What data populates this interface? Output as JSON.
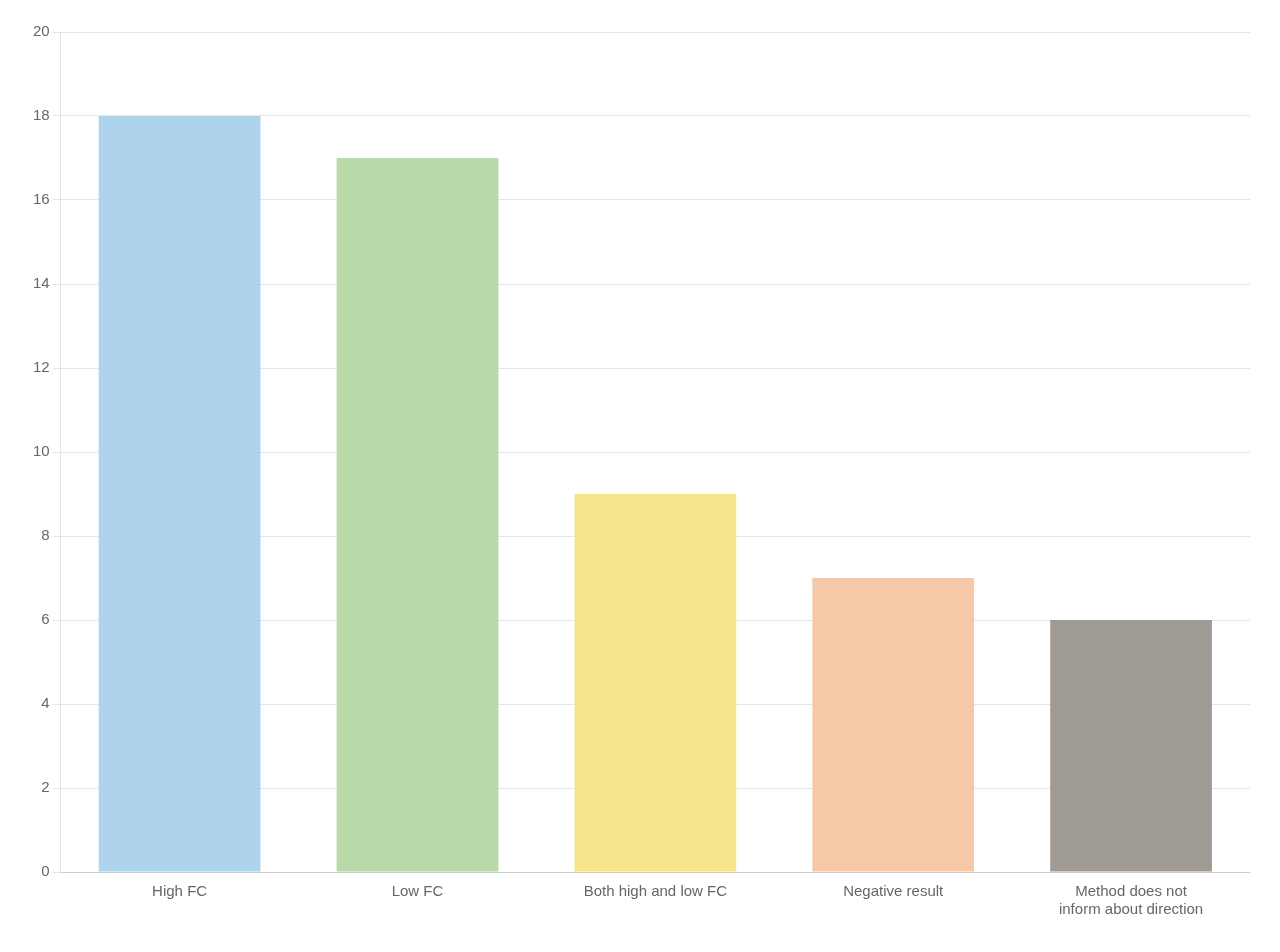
{
  "chart_data": {
    "type": "bar",
    "categories": [
      "High FC",
      "Low FC",
      "Both high and low FC",
      "Negative result",
      "Method does not\ninform about direction"
    ],
    "values": [
      18,
      17,
      9,
      7,
      6
    ],
    "colors": [
      "#aed4ed",
      "#b8d9a8",
      "#f5e48a",
      "#f5c9a8",
      "#a09a95"
    ],
    "ylim": [
      0,
      20
    ],
    "yticks": [
      0,
      2,
      4,
      6,
      8,
      10,
      12,
      14,
      16,
      18,
      20
    ],
    "grid": true
  }
}
